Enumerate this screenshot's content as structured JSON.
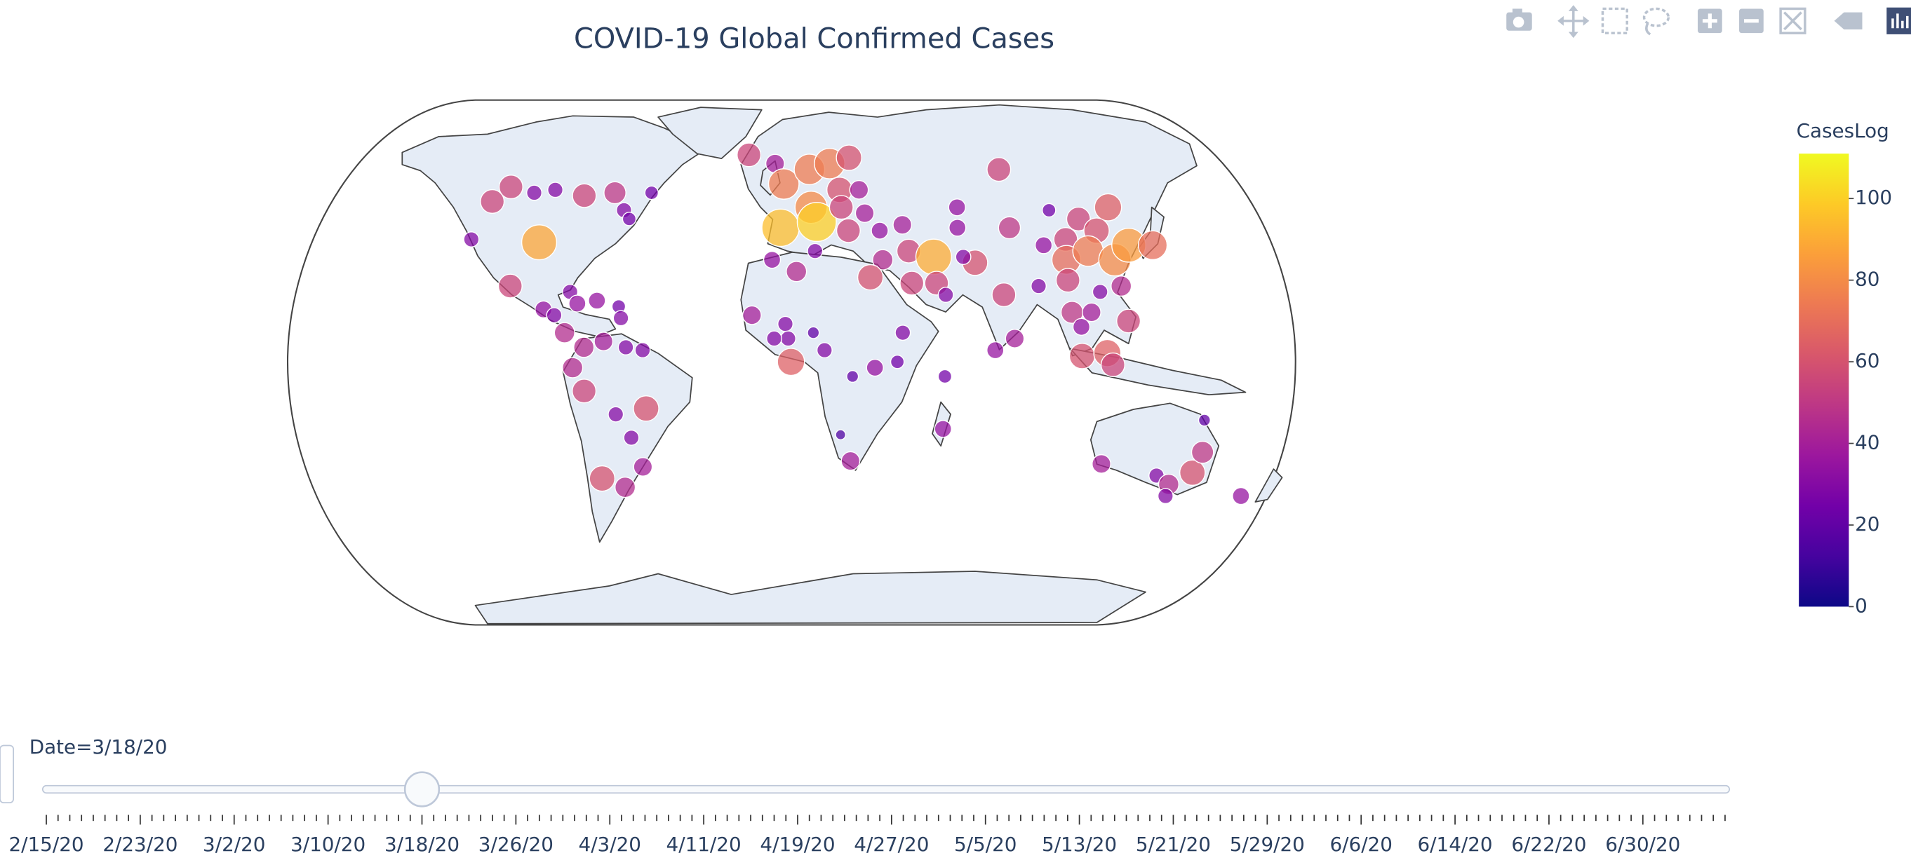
{
  "chart_data": {
    "type": "scattergeo",
    "title": "COVID-19 Global Confirmed Cases",
    "projection": "natural earth",
    "lon": [
      -120,
      -116,
      -105,
      -97,
      -84,
      -72,
      -57,
      -66,
      -63,
      -121,
      -95,
      -102,
      -80,
      -77,
      -70,
      -62,
      -89,
      -85,
      -61,
      -81,
      -74,
      -67,
      -59,
      -53,
      -78,
      -74,
      -52,
      -63,
      -58,
      -55,
      -71,
      -63,
      -19,
      -7,
      -3,
      8,
      17,
      26,
      20,
      8,
      -4,
      10,
      20,
      28,
      29,
      22,
      34,
      43,
      34,
      44,
      53,
      44,
      53,
      29,
      68,
      64,
      56,
      -7,
      2,
      9,
      -14,
      -2,
      -1,
      -6,
      8,
      12,
      0,
      40,
      30,
      38,
      22,
      55,
      18,
      55,
      22,
      90,
      66,
      64,
      84,
      77,
      90,
      73,
      80,
      102,
      95,
      104,
      112,
      126,
      117,
      102,
      111,
      120,
      127,
      136,
      101,
      112,
      120,
      101,
      108,
      104,
      121,
      104,
      113,
      115,
      115,
      137,
      143,
      144,
      150,
      151,
      149,
      173
    ],
    "lat": [
      55,
      60,
      58,
      59,
      57,
      58,
      58,
      52,
      49,
      42,
      41,
      26,
      24,
      20,
      21,
      19,
      18,
      16,
      15,
      10,
      5,
      7,
      5,
      4,
      -2,
      -10,
      -16,
      -18,
      -26,
      -36,
      -40,
      -43,
      71,
      68,
      61,
      66,
      68,
      70,
      59,
      53,
      46,
      48,
      53,
      59,
      51,
      45,
      45,
      47,
      35,
      38,
      36,
      27,
      27,
      29,
      34,
      36,
      23,
      35,
      31,
      38,
      16,
      13,
      8,
      8,
      10,
      4,
      0,
      10,
      -2,
      0,
      -5,
      -5,
      -25,
      -23,
      -34,
      66,
      53,
      46,
      46,
      23,
      26,
      4,
      8,
      52,
      40,
      42,
      49,
      53,
      45,
      35,
      38,
      35,
      40,
      40,
      28,
      24,
      26,
      17,
      17,
      12,
      14,
      2,
      3,
      -1,
      -35,
      -39,
      -42,
      -46,
      -38,
      -31,
      -20,
      -46
    ],
    "values": [
      55,
      55,
      30,
      30,
      55,
      50,
      25,
      30,
      25,
      30,
      88,
      55,
      30,
      35,
      35,
      25,
      35,
      30,
      30,
      45,
      45,
      40,
      30,
      30,
      45,
      55,
      60,
      30,
      30,
      40,
      60,
      45,
      55,
      40,
      75,
      75,
      75,
      60,
      60,
      80,
      95,
      100,
      55,
      40,
      40,
      55,
      35,
      40,
      45,
      55,
      90,
      55,
      55,
      60,
      60,
      30,
      30,
      35,
      45,
      30,
      40,
      30,
      30,
      30,
      20,
      30,
      65,
      30,
      35,
      25,
      20,
      25,
      15,
      35,
      40,
      55,
      35,
      35,
      50,
      55,
      30,
      35,
      40,
      25,
      35,
      55,
      55,
      65,
      60,
      70,
      75,
      80,
      85,
      70,
      55,
      30,
      45,
      50,
      40,
      35,
      55,
      60,
      65,
      55,
      40,
      30,
      45,
      30,
      60,
      50,
      20,
      35
    ],
    "colorscale": "Plasma",
    "colorbar": {
      "title": "CasesLog",
      "range": [
        0,
        111
      ],
      "ticks": [
        0,
        20,
        40,
        60,
        80,
        100
      ]
    },
    "slider": {
      "current_label": "Date=3/18/20",
      "step_count": 144,
      "active_step": 32,
      "label_every": 8,
      "labels": [
        "2/15/20",
        "2/23/20",
        "3/2/20",
        "3/10/20",
        "3/18/20",
        "3/26/20",
        "4/3/20",
        "4/11/20",
        "4/19/20",
        "4/27/20",
        "5/5/20",
        "5/13/20",
        "5/21/20",
        "5/29/20",
        "6/6/20",
        "6/14/20",
        "6/22/20",
        "6/30/20"
      ]
    }
  }
}
